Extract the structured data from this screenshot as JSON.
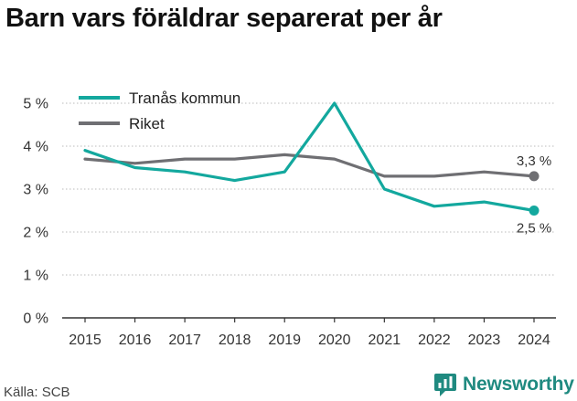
{
  "chart_data": {
    "type": "line",
    "title": "Barn vars föräldrar separerat per år",
    "x": [
      "2015",
      "2016",
      "2017",
      "2018",
      "2019",
      "2020",
      "2021",
      "2022",
      "2023",
      "2024"
    ],
    "series": [
      {
        "name": "Tranås kommun",
        "color": "#13a89e",
        "values": [
          3.9,
          3.5,
          3.4,
          3.2,
          3.4,
          5.0,
          3.0,
          2.6,
          2.7,
          2.5
        ],
        "end_label": "2,5 %"
      },
      {
        "name": "Riket",
        "color": "#6f6f73",
        "values": [
          3.7,
          3.6,
          3.7,
          3.7,
          3.8,
          3.7,
          3.3,
          3.3,
          3.4,
          3.3
        ],
        "end_label": "3,3 %"
      }
    ],
    "ylim": [
      0,
      5
    ],
    "y_ticks": [
      0,
      1,
      2,
      3,
      4,
      5
    ],
    "y_tick_labels": [
      "0 %",
      "1 %",
      "2 %",
      "3 %",
      "4 %",
      "5 %"
    ],
    "grid": "horizontal dotted",
    "legend": "top-left"
  },
  "footer": {
    "source": "Källa: SCB",
    "brand": "Newsworthy"
  },
  "colors": {
    "brand": "#1f8a80",
    "grid": "#bbbbbb",
    "axis": "#333333"
  }
}
